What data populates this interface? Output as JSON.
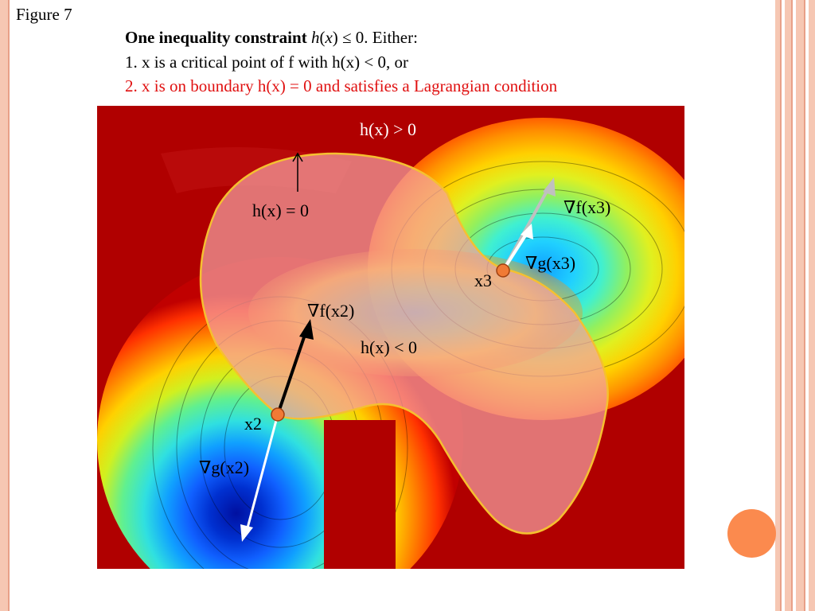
{
  "figure_label": "Figure 7",
  "caption": {
    "line1_bold": "One inequality constraint",
    "line1_rest_h": "h",
    "line1_rest_x": "x",
    "line1_rest_tail": ") ≤ 0.  Either:",
    "line2": "1. x is a critical point of f with h(x) < 0, or",
    "line3": "2. x is on boundary h(x) = 0 and satisfies a Lagrangian condition"
  },
  "labels": {
    "h_pos": "h(x) > 0",
    "h_zero": "h(x) = 0",
    "h_neg": "h(x) < 0",
    "grad_f_x2": "∇f(x2)",
    "grad_g_x2": "∇g(x2)",
    "grad_f_x3": "∇f(x3)",
    "grad_g_x3": "∇g(x3)",
    "x2": "x2",
    "x3": "x3"
  },
  "colors": {
    "accent_red": "#e01010",
    "point_orange": "#f07a35",
    "region_fill": "#f4a0a0",
    "region_stroke": "#f5c030",
    "border_peach": "#f6c7b3",
    "deco_circle": "#fb8a4e"
  }
}
